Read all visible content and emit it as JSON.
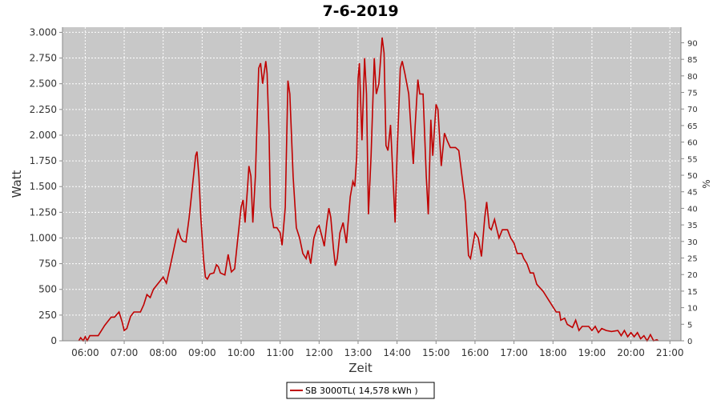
{
  "chart_data": {
    "type": "line",
    "title": "7-6-2019",
    "xlabel": "Zeit",
    "ylabel": "Watt",
    "y2label": "%",
    "x": [
      "05:50",
      "05:53",
      "05:57",
      "06:00",
      "06:03",
      "06:07",
      "06:10",
      "06:20",
      "06:30",
      "06:40",
      "06:45",
      "06:52",
      "06:57",
      "07:00",
      "07:04",
      "07:10",
      "07:15",
      "07:25",
      "07:30",
      "07:35",
      "07:40",
      "07:45",
      "07:55",
      "08:00",
      "08:05",
      "08:10",
      "08:15",
      "08:20",
      "08:23",
      "08:27",
      "08:30",
      "08:35",
      "08:40",
      "08:45",
      "08:50",
      "08:52",
      "08:55",
      "08:58",
      "09:02",
      "09:05",
      "09:08",
      "09:12",
      "09:18",
      "09:22",
      "09:25",
      "09:28",
      "09:35",
      "09:40",
      "09:45",
      "09:50",
      "09:55",
      "10:00",
      "10:03",
      "10:06",
      "10:10",
      "10:12",
      "10:15",
      "10:18",
      "10:22",
      "10:27",
      "10:30",
      "10:33",
      "10:38",
      "10:40",
      "10:43",
      "10:45",
      "10:50",
      "10:55",
      "11:00",
      "11:03",
      "11:08",
      "11:12",
      "11:15",
      "11:20",
      "11:25",
      "11:30",
      "11:35",
      "11:40",
      "11:43",
      "11:47",
      "11:52",
      "11:57",
      "12:00",
      "12:05",
      "12:08",
      "12:12",
      "12:15",
      "12:18",
      "12:22",
      "12:25",
      "12:28",
      "12:32",
      "12:37",
      "12:42",
      "12:48",
      "12:52",
      "12:55",
      "12:58",
      "13:00",
      "13:02",
      "13:06",
      "13:10",
      "13:13",
      "13:16",
      "13:20",
      "13:25",
      "13:28",
      "13:32",
      "13:37",
      "13:40",
      "13:43",
      "13:46",
      "13:50",
      "13:53",
      "13:57",
      "14:00",
      "14:05",
      "14:08",
      "14:12",
      "14:18",
      "14:22",
      "14:25",
      "14:28",
      "14:32",
      "14:35",
      "14:40",
      "14:45",
      "14:48",
      "14:52",
      "14:55",
      "15:00",
      "15:03",
      "15:08",
      "15:13",
      "15:17",
      "15:22",
      "15:30",
      "15:35",
      "15:40",
      "15:45",
      "15:50",
      "15:53",
      "16:00",
      "16:05",
      "16:10",
      "16:15",
      "16:18",
      "16:22",
      "16:25",
      "16:30",
      "16:33",
      "16:37",
      "16:42",
      "16:50",
      "16:55",
      "17:00",
      "17:05",
      "17:12",
      "17:15",
      "17:20",
      "17:25",
      "17:30",
      "17:35",
      "17:45",
      "17:55",
      "18:05",
      "18:10",
      "18:12",
      "18:18",
      "18:22",
      "18:30",
      "18:35",
      "18:40",
      "18:45",
      "18:55",
      "19:00",
      "19:05",
      "19:10",
      "19:15",
      "19:22",
      "19:30",
      "19:40",
      "19:45",
      "19:50",
      "19:55",
      "20:00",
      "20:05",
      "20:10",
      "20:15",
      "20:20",
      "20:25",
      "20:30",
      "20:35",
      "20:40",
      "20:42"
    ],
    "series": [
      {
        "name": "SB 3000TL( 14,578 kWh )",
        "color": "#c00000",
        "values": [
          0,
          30,
          0,
          40,
          0,
          50,
          50,
          50,
          150,
          230,
          230,
          280,
          180,
          100,
          120,
          240,
          280,
          280,
          350,
          450,
          420,
          500,
          580,
          620,
          560,
          700,
          850,
          1000,
          1080,
          1000,
          970,
          960,
          1200,
          1500,
          1800,
          1840,
          1600,
          1200,
          800,
          620,
          600,
          650,
          660,
          740,
          720,
          660,
          640,
          840,
          670,
          700,
          1000,
          1300,
          1370,
          1150,
          1500,
          1700,
          1600,
          1150,
          1600,
          2650,
          2700,
          2500,
          2720,
          2600,
          2000,
          1300,
          1100,
          1100,
          1050,
          930,
          1300,
          2530,
          2400,
          1600,
          1100,
          1000,
          850,
          800,
          880,
          750,
          1000,
          1100,
          1120,
          1000,
          920,
          1150,
          1290,
          1200,
          900,
          730,
          800,
          1050,
          1150,
          950,
          1400,
          1550,
          1500,
          1800,
          2550,
          2700,
          1950,
          2750,
          2400,
          1230,
          1800,
          2750,
          2400,
          2500,
          2950,
          2800,
          1900,
          1850,
          2100,
          1700,
          1150,
          1800,
          2650,
          2720,
          2600,
          2400,
          2000,
          1720,
          2100,
          2540,
          2400,
          2400,
          1600,
          1230,
          2150,
          1800,
          2300,
          2250,
          1700,
          2020,
          1950,
          1880,
          1880,
          1850,
          1600,
          1350,
          830,
          800,
          1050,
          1000,
          820,
          1200,
          1350,
          1100,
          1080,
          1180,
          1100,
          1000,
          1080,
          1080,
          1000,
          950,
          850,
          850,
          800,
          750,
          660,
          660,
          550,
          480,
          380,
          280,
          280,
          200,
          220,
          160,
          130,
          200,
          100,
          140,
          140,
          100,
          140,
          80,
          120,
          100,
          90,
          100,
          50,
          100,
          40,
          80,
          40,
          80,
          20,
          50,
          0,
          60,
          0,
          10,
          0
        ]
      }
    ],
    "xlim": [
      "05:25",
      "21:17"
    ],
    "xticks": [
      "06:00",
      "07:00",
      "08:00",
      "09:00",
      "10:00",
      "11:00",
      "12:00",
      "13:00",
      "14:00",
      "15:00",
      "16:00",
      "17:00",
      "18:00",
      "19:00",
      "20:00",
      "21:00"
    ],
    "ylim": [
      0,
      3050
    ],
    "yticks": [
      0,
      250,
      500,
      750,
      {
        "value": 1000,
        "label": "1.000"
      },
      {
        "value": 1250,
        "label": "1.250"
      },
      {
        "value": 1500,
        "label": "1.500"
      },
      {
        "value": 1750,
        "label": "1.750"
      },
      {
        "value": 2000,
        "label": "2.000"
      },
      {
        "value": 2250,
        "label": "2.250"
      },
      {
        "value": 2500,
        "label": "2.500"
      },
      {
        "value": 2750,
        "label": "2.750"
      },
      {
        "value": 3000,
        "label": "3.000"
      }
    ],
    "y2lim": [
      0,
      94.7
    ],
    "y2ticks": [
      0,
      5,
      10,
      15,
      20,
      25,
      30,
      35,
      40,
      45,
      50,
      55,
      60,
      65,
      70,
      75,
      80,
      85,
      90
    ],
    "grid": true,
    "legend": "bottom"
  }
}
